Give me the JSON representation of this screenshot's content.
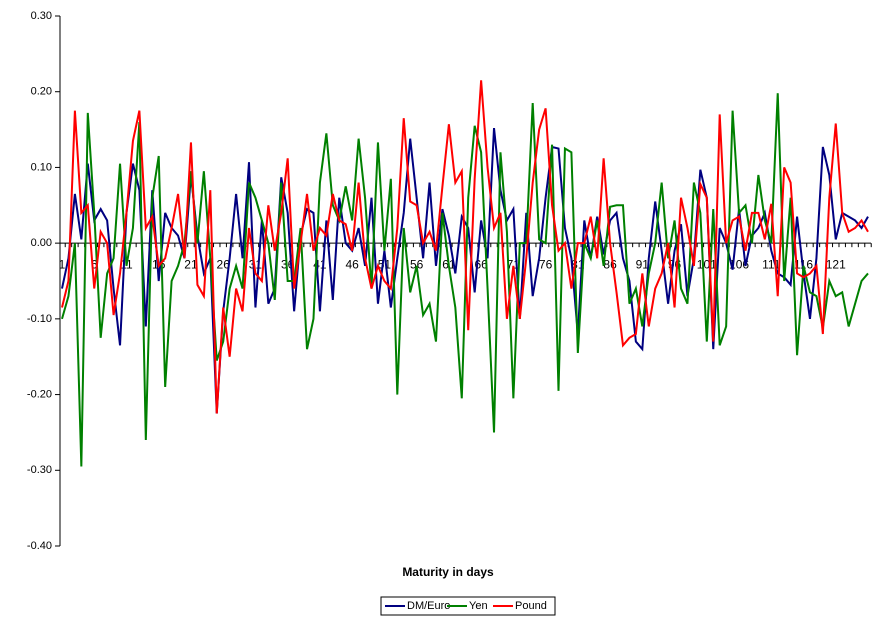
{
  "chart_data": {
    "type": "line",
    "x_label": "Maturity in days",
    "categories": [
      1,
      null,
      null,
      null,
      null,
      6,
      null,
      null,
      null,
      null,
      11,
      null,
      null,
      null,
      null,
      16,
      null,
      null,
      null,
      null,
      21,
      null,
      null,
      null,
      null,
      26,
      null,
      null,
      null,
      null,
      31,
      null,
      null,
      null,
      null,
      36,
      null,
      null,
      null,
      null,
      41,
      null,
      null,
      null,
      null,
      46,
      null,
      null,
      null,
      null,
      51,
      null,
      null,
      null,
      null,
      56,
      null,
      null,
      null,
      null,
      61,
      null,
      null,
      null,
      null,
      66,
      null,
      null,
      null,
      null,
      71,
      null,
      null,
      null,
      null,
      76,
      null,
      null,
      null,
      null,
      81,
      null,
      null,
      null,
      null,
      86,
      null,
      null,
      null,
      null,
      91,
      null,
      null,
      null,
      null,
      96,
      null,
      null,
      null,
      null,
      101,
      null,
      null,
      null,
      null,
      106,
      null,
      null,
      null,
      null,
      111,
      null,
      null,
      null,
      null,
      116,
      null,
      null,
      null,
      null,
      121,
      null,
      null,
      null,
      null,
      null
    ],
    "series": [
      {
        "name": "DM/Euro",
        "color": "#000080",
        "values": [
          -0.06,
          -0.02,
          0.065,
          0.005,
          0.105,
          0.03,
          0.045,
          0.03,
          -0.06,
          -0.135,
          0.04,
          0.105,
          0.07,
          -0.11,
          0.07,
          -0.05,
          0.04,
          0.02,
          0.01,
          -0.02,
          0.09,
          0.01,
          -0.04,
          -0.02,
          -0.225,
          -0.09,
          -0.02,
          0.065,
          -0.02,
          0.107,
          -0.085,
          0.03,
          -0.08,
          -0.06,
          0.087,
          0.04,
          -0.09,
          0.01,
          0.045,
          0.04,
          -0.09,
          0.03,
          -0.075,
          0.06,
          0.0,
          -0.01,
          0.02,
          -0.03,
          0.06,
          -0.08,
          -0.01,
          -0.085,
          -0.02,
          0.04,
          0.138,
          0.06,
          -0.02,
          0.08,
          -0.03,
          0.045,
          0.01,
          -0.04,
          0.035,
          0.02,
          -0.065,
          0.03,
          -0.02,
          0.152,
          0.07,
          0.03,
          0.045,
          -0.1,
          0.04,
          -0.07,
          -0.02,
          0.06,
          0.127,
          0.125,
          0.02,
          -0.02,
          -0.12,
          0.03,
          -0.02,
          0.035,
          -0.015,
          0.03,
          0.04,
          -0.02,
          -0.05,
          -0.13,
          -0.14,
          -0.02,
          0.055,
          -0.01,
          -0.08,
          -0.01,
          0.025,
          -0.07,
          -0.02,
          0.097,
          0.06,
          -0.14,
          0.02,
          0.0,
          -0.035,
          0.045,
          -0.03,
          0.01,
          0.02,
          0.04,
          -0.01,
          -0.04,
          -0.045,
          -0.055,
          0.035,
          -0.04,
          -0.1,
          -0.02,
          0.127,
          0.09,
          0.005,
          0.04,
          0.035,
          0.03,
          0.02,
          0.035
        ]
      },
      {
        "name": "Yen",
        "color": "#008000",
        "values": [
          -0.1,
          -0.07,
          0.0,
          -0.295,
          0.172,
          0.04,
          -0.125,
          -0.04,
          -0.02,
          0.105,
          -0.03,
          0.02,
          0.16,
          -0.26,
          0.06,
          0.115,
          -0.19,
          -0.05,
          -0.03,
          0.0,
          0.095,
          0.0,
          0.095,
          -0.02,
          -0.155,
          -0.13,
          -0.06,
          -0.03,
          -0.06,
          0.08,
          0.06,
          0.03,
          0.0,
          -0.075,
          0.08,
          -0.05,
          -0.05,
          0.02,
          -0.14,
          -0.1,
          0.08,
          0.145,
          0.05,
          0.03,
          0.075,
          0.03,
          0.138,
          0.06,
          -0.06,
          0.133,
          -0.01,
          0.085,
          -0.2,
          0.02,
          -0.065,
          -0.03,
          -0.095,
          -0.08,
          -0.13,
          0.04,
          -0.03,
          -0.085,
          -0.205,
          0.06,
          0.155,
          0.12,
          -0.06,
          -0.25,
          0.12,
          0.015,
          -0.205,
          0.0,
          0.0,
          0.185,
          0.005,
          0.0,
          0.13,
          -0.195,
          0.125,
          0.12,
          -0.145,
          0.0,
          -0.02,
          0.03,
          -0.03,
          0.048,
          0.05,
          0.05,
          -0.08,
          -0.06,
          -0.11,
          -0.04,
          0.0,
          0.08,
          -0.02,
          0.03,
          -0.06,
          -0.08,
          0.08,
          0.04,
          -0.13,
          0.045,
          -0.135,
          -0.11,
          0.175,
          0.04,
          0.05,
          0.0,
          0.09,
          0.03,
          0.0,
          0.198,
          -0.05,
          0.06,
          -0.148,
          -0.03,
          -0.065,
          -0.07,
          -0.112,
          -0.05,
          -0.07,
          -0.065,
          -0.11,
          -0.08,
          -0.05,
          -0.04
        ]
      },
      {
        "name": "Pound",
        "color": "#ff0000",
        "values": [
          -0.085,
          -0.05,
          0.175,
          0.04,
          0.05,
          -0.06,
          0.015,
          0.0,
          -0.095,
          -0.04,
          0.04,
          0.135,
          0.175,
          0.02,
          0.035,
          -0.03,
          -0.02,
          0.02,
          0.065,
          -0.02,
          0.133,
          -0.055,
          -0.07,
          0.07,
          -0.225,
          -0.085,
          -0.15,
          -0.06,
          -0.09,
          0.02,
          -0.04,
          -0.05,
          0.05,
          -0.01,
          0.04,
          0.112,
          -0.06,
          0.0,
          0.065,
          -0.01,
          0.02,
          0.01,
          0.065,
          0.03,
          0.025,
          -0.01,
          0.08,
          -0.02,
          -0.06,
          -0.03,
          -0.05,
          -0.06,
          0.02,
          0.165,
          0.055,
          0.05,
          0.0,
          0.015,
          -0.01,
          0.075,
          0.157,
          0.08,
          0.095,
          -0.115,
          0.085,
          0.215,
          0.1,
          0.02,
          0.04,
          -0.1,
          -0.03,
          -0.1,
          -0.02,
          0.08,
          0.15,
          0.178,
          0.05,
          -0.01,
          0.0,
          -0.06,
          0.0,
          0.0,
          0.035,
          -0.02,
          0.112,
          0.0,
          -0.065,
          -0.135,
          -0.125,
          -0.12,
          -0.04,
          -0.11,
          -0.06,
          -0.04,
          0.0,
          -0.085,
          0.06,
          0.02,
          -0.03,
          0.078,
          0.06,
          -0.13,
          0.17,
          0.0,
          0.03,
          0.035,
          -0.01,
          0.04,
          0.04,
          0.005,
          0.052,
          -0.07,
          0.1,
          0.08,
          -0.04,
          -0.045,
          -0.04,
          -0.03,
          -0.12,
          0.06,
          0.158,
          0.04,
          0.015,
          0.02,
          0.03,
          0.015
        ]
      }
    ],
    "ylim": [
      -0.4,
      0.3
    ],
    "yticks": [
      {
        "value": 0.3,
        "label": "0.30"
      },
      {
        "value": 0.2,
        "label": "0.20"
      },
      {
        "value": 0.1,
        "label": "0.10"
      },
      {
        "value": 0,
        "label": "0.00"
      },
      {
        "value": -0.1,
        "label": "-0.10"
      },
      {
        "value": -0.2,
        "label": "-0.20"
      },
      {
        "value": -0.3,
        "label": "-0.30"
      },
      {
        "value": -0.4,
        "label": "-0.40"
      }
    ],
    "grid": false,
    "legend": "bottom"
  }
}
